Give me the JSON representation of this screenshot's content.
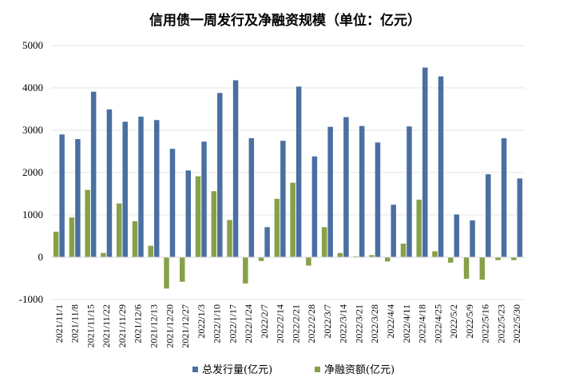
{
  "chart_data": {
    "type": "bar",
    "title": "信用债一周发行及净融资规模（单位：亿元）",
    "xlabel": "",
    "ylabel": "",
    "ylim": [
      -1000,
      5000
    ],
    "yticks": [
      -1000,
      0,
      1000,
      2000,
      3000,
      4000,
      5000
    ],
    "grid": true,
    "legend_position": "bottom",
    "categories": [
      "2021/11/1",
      "2021/11/8",
      "2021/11/15",
      "2021/11/22",
      "2021/11/29",
      "2021/12/6",
      "2021/12/13",
      "2021/12/20",
      "2021/12/27",
      "2022/1/3",
      "2022/1/10",
      "2022/1/17",
      "2022/1/24",
      "2022/2/7",
      "2022/2/14",
      "2022/2/21",
      "2022/2/28",
      "2022/3/7",
      "2022/3/14",
      "2022/3/21",
      "2022/3/28",
      "2022/4/4",
      "2022/4/11",
      "2022/4/18",
      "2022/4/25",
      "2022/5/2",
      "2022/5/9",
      "2022/5/16",
      "2022/5/23",
      "2022/5/30"
    ],
    "series": [
      {
        "name": "总发行量(亿元)",
        "color": "#4a6fa0",
        "values": [
          2900,
          2790,
          3910,
          3490,
          3200,
          3320,
          3240,
          2560,
          2050,
          2730,
          3880,
          4180,
          2810,
          710,
          2750,
          4030,
          2380,
          3080,
          3310,
          3100,
          2710,
          1240,
          3090,
          4480,
          4270,
          1010,
          870,
          1960,
          2810,
          1860
        ]
      },
      {
        "name": "净融资额(亿元)",
        "color": "#86a148",
        "values": [
          600,
          940,
          1590,
          100,
          1270,
          850,
          270,
          -740,
          -580,
          1910,
          1560,
          880,
          -620,
          -90,
          1380,
          1760,
          -200,
          710,
          100,
          20,
          50,
          -100,
          320,
          1360,
          140,
          -130,
          -510,
          -530,
          -70,
          -70
        ]
      }
    ]
  }
}
